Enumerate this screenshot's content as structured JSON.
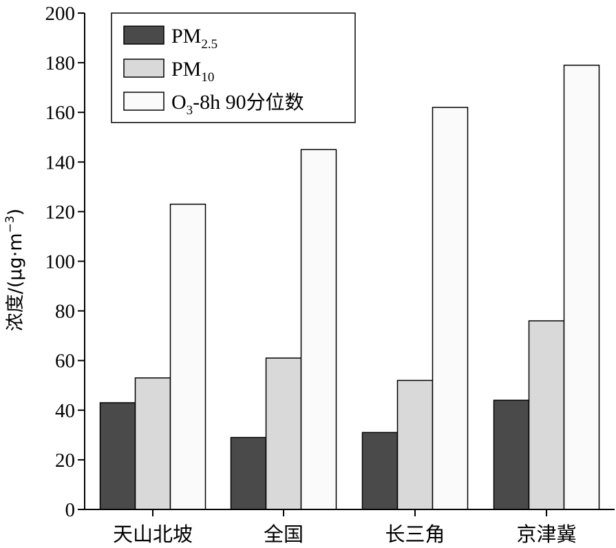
{
  "chart_data": {
    "type": "bar",
    "categories": [
      "天山北坡",
      "全国",
      "长三角",
      "京津冀"
    ],
    "series": [
      {
        "name": "PM2.5",
        "name_main": "PM",
        "name_sub": "2.5",
        "color": "#4a4a4a",
        "values": [
          43,
          29,
          31,
          44
        ]
      },
      {
        "name": "PM10",
        "name_main": "PM",
        "name_sub": "10",
        "color": "#d9d9d9",
        "values": [
          53,
          61,
          52,
          76
        ]
      },
      {
        "name": "O3-8h 90分位数",
        "name_main": "O",
        "name_sub": "3",
        "name_rest": "-8h 90",
        "name_cjk": "分位数",
        "color": "#fafafa",
        "values": [
          123,
          145,
          162,
          179
        ]
      }
    ],
    "ylabel": "浓度/(μg·m",
    "ylabel_sup": "−3",
    "ylabel_close": ")",
    "ylim": [
      0,
      200
    ],
    "yticks": [
      0,
      20,
      40,
      60,
      80,
      100,
      120,
      140,
      160,
      180,
      200
    ],
    "grid": false,
    "legend_position": "top-left"
  }
}
